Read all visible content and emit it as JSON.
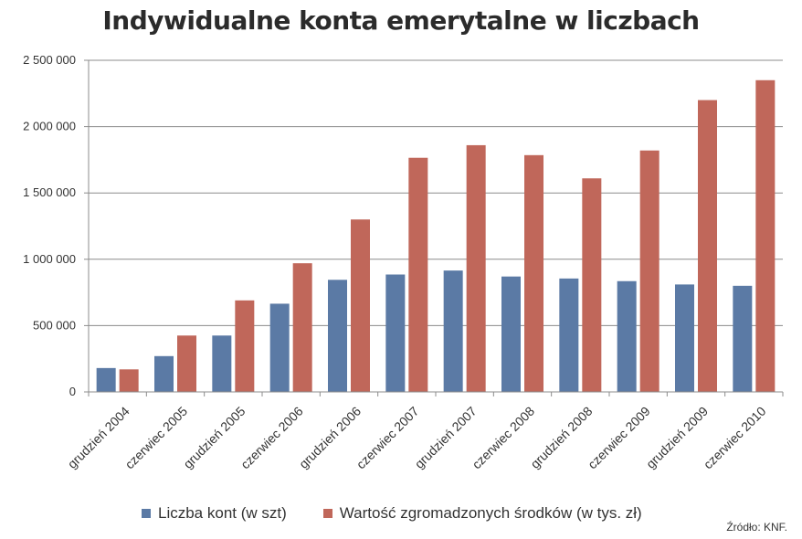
{
  "chart_data": {
    "type": "bar",
    "title": "Indywidualne konta emerytalne w liczbach",
    "categories": [
      "grudzień 2004",
      "czerwiec 2005",
      "grudzień 2005",
      "czerwiec 2006",
      "grudzień 2006",
      "czerwiec 2007",
      "grudzień 2007",
      "czerwiec 2008",
      "grudzień 2008",
      "czerwiec 2009",
      "grudzień 2009",
      "czerwiec 2010"
    ],
    "series": [
      {
        "name": "Liczba kont (w szt)",
        "color": "#5b7aa5",
        "values": [
          180000,
          270000,
          425000,
          665000,
          845000,
          885000,
          915000,
          870000,
          855000,
          835000,
          810000,
          800000
        ]
      },
      {
        "name": "Wartość zgromadzonych środków (w tys. zł)",
        "color": "#c0675a",
        "values": [
          170000,
          425000,
          690000,
          970000,
          1300000,
          1765000,
          1860000,
          1785000,
          1610000,
          1820000,
          2200000,
          2350000
        ]
      }
    ],
    "ylim": [
      0,
      2500000
    ],
    "yticks": [
      0,
      500000,
      1000000,
      1500000,
      2000000,
      2500000
    ],
    "ytick_labels": [
      "0",
      "500 000",
      "1 000 000",
      "1 500 000",
      "2 000 000",
      "2 500 000"
    ],
    "grid": true,
    "legend_position": "bottom"
  },
  "source_note": "Źródło: KNF."
}
